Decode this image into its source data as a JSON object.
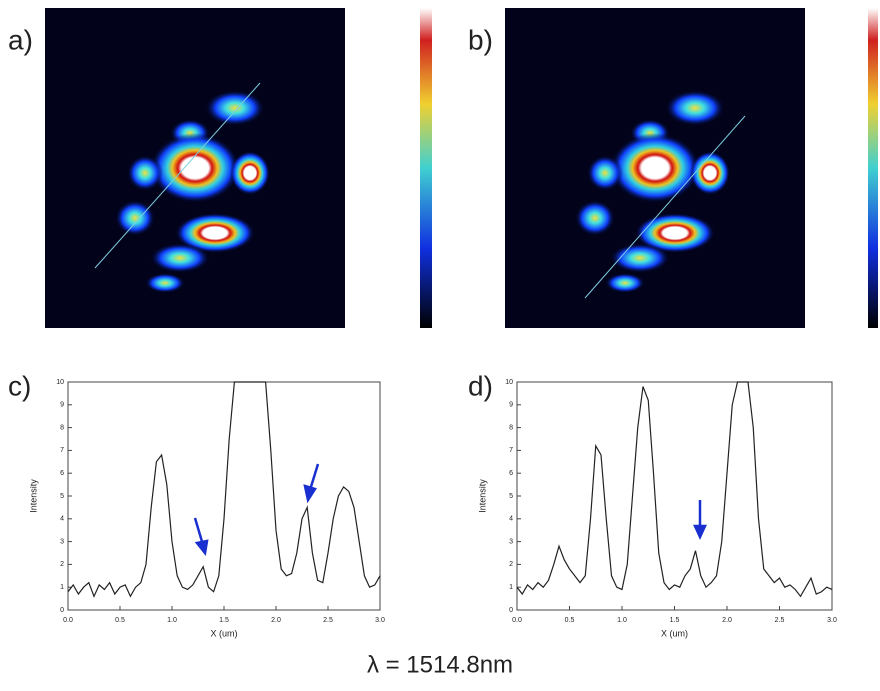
{
  "panel_labels": [
    "a)",
    "b)",
    "c)",
    "d)"
  ],
  "caption": "λ = 1514.8nm",
  "chart_data": [
    {
      "type": "line",
      "x_label": "X (um)",
      "y_label": "Intensity",
      "x": [
        0,
        0.05,
        0.1,
        0.15,
        0.2,
        0.25,
        0.3,
        0.35,
        0.4,
        0.45,
        0.5,
        0.55,
        0.6,
        0.65,
        0.7,
        0.75,
        0.8,
        0.85,
        0.9,
        0.95,
        1.0,
        1.05,
        1.1,
        1.15,
        1.2,
        1.25,
        1.3,
        1.35,
        1.4,
        1.45,
        1.5,
        1.55,
        1.6,
        1.65,
        1.7,
        1.75,
        1.8,
        1.85,
        1.9,
        1.95,
        2.0,
        2.05,
        2.1,
        2.15,
        2.2,
        2.25,
        2.3,
        2.35,
        2.4,
        2.45,
        2.5,
        2.55,
        2.6,
        2.65,
        2.7,
        2.75,
        2.8,
        2.85,
        2.9,
        2.95,
        3.0
      ],
      "series": [
        {
          "color": "#222222",
          "values": [
            0.8,
            1.1,
            0.7,
            1.0,
            1.2,
            0.6,
            1.1,
            0.9,
            1.2,
            0.7,
            1.0,
            1.1,
            0.6,
            1.0,
            1.2,
            2,
            4.5,
            6.5,
            6.8,
            5.5,
            3,
            1.5,
            1,
            0.9,
            1.1,
            1.5,
            1.9,
            1.0,
            0.8,
            1.5,
            4,
            7.5,
            10,
            10,
            10,
            10,
            10,
            10,
            10,
            7,
            3.5,
            1.8,
            1.5,
            1.6,
            2.5,
            4,
            4.5,
            2.5,
            1.3,
            1.2,
            2.5,
            4,
            5,
            5.4,
            5.2,
            4.5,
            3,
            1.5,
            1.0,
            1.1,
            1.5
          ]
        }
      ],
      "xlim": [
        0,
        3.0
      ],
      "ylim": [
        0,
        10
      ],
      "xticks": [
        {
          "value": 0,
          "label": "0.0"
        },
        {
          "value": 0.5,
          "label": "0.5"
        },
        {
          "value": 1,
          "label": "1.0"
        },
        {
          "value": 1.5,
          "label": "1.5"
        },
        {
          "value": 2,
          "label": "2.0"
        },
        {
          "value": 2.5,
          "label": "2.5"
        },
        {
          "value": 3,
          "label": "3.0"
        }
      ],
      "yticks": [
        0,
        1,
        2,
        3,
        4,
        5,
        6,
        7,
        8,
        9,
        10
      ]
    },
    {
      "type": "line",
      "x_label": "X (um)",
      "y_label": "Intensity",
      "x": [
        0,
        0.05,
        0.1,
        0.15,
        0.2,
        0.25,
        0.3,
        0.35,
        0.4,
        0.45,
        0.5,
        0.55,
        0.6,
        0.65,
        0.7,
        0.75,
        0.8,
        0.85,
        0.9,
        0.95,
        1.0,
        1.05,
        1.1,
        1.15,
        1.2,
        1.25,
        1.3,
        1.35,
        1.4,
        1.45,
        1.5,
        1.55,
        1.6,
        1.65,
        1.7,
        1.75,
        1.8,
        1.85,
        1.9,
        1.95,
        2.0,
        2.05,
        2.1,
        2.15,
        2.2,
        2.25,
        2.3,
        2.35,
        2.4,
        2.45,
        2.5,
        2.55,
        2.6,
        2.65,
        2.7,
        2.75,
        2.8,
        2.85,
        2.9,
        2.95,
        3.0
      ],
      "series": [
        {
          "color": "#222222",
          "values": [
            1.0,
            0.7,
            1.1,
            0.9,
            1.2,
            1.0,
            1.3,
            2,
            2.8,
            2.2,
            1.8,
            1.5,
            1.2,
            1.5,
            4,
            7.2,
            6.8,
            4,
            1.5,
            1.0,
            0.9,
            2,
            5,
            8,
            9.8,
            9.2,
            6,
            2.5,
            1.2,
            0.9,
            1.1,
            1.0,
            1.5,
            1.8,
            2.6,
            1.5,
            1.0,
            1.2,
            1.5,
            3,
            6,
            9,
            10,
            10,
            10,
            8,
            4,
            1.8,
            1.5,
            1.2,
            1.4,
            1.0,
            1.1,
            0.9,
            0.6,
            1.0,
            1.4,
            0.7,
            0.8,
            1.0,
            0.9
          ]
        }
      ],
      "xlim": [
        0,
        3.0
      ],
      "ylim": [
        0,
        10
      ],
      "xticks": [
        {
          "value": 0,
          "label": "0.0"
        },
        {
          "value": 0.5,
          "label": "0.5"
        },
        {
          "value": 1,
          "label": "1.0"
        },
        {
          "value": 1.5,
          "label": "1.5"
        },
        {
          "value": 2,
          "label": "2.0"
        },
        {
          "value": 2.5,
          "label": "2.5"
        },
        {
          "value": 3,
          "label": "3.0"
        }
      ],
      "yticks": [
        0,
        1,
        2,
        3,
        4,
        5,
        6,
        7,
        8,
        9,
        10
      ]
    }
  ]
}
